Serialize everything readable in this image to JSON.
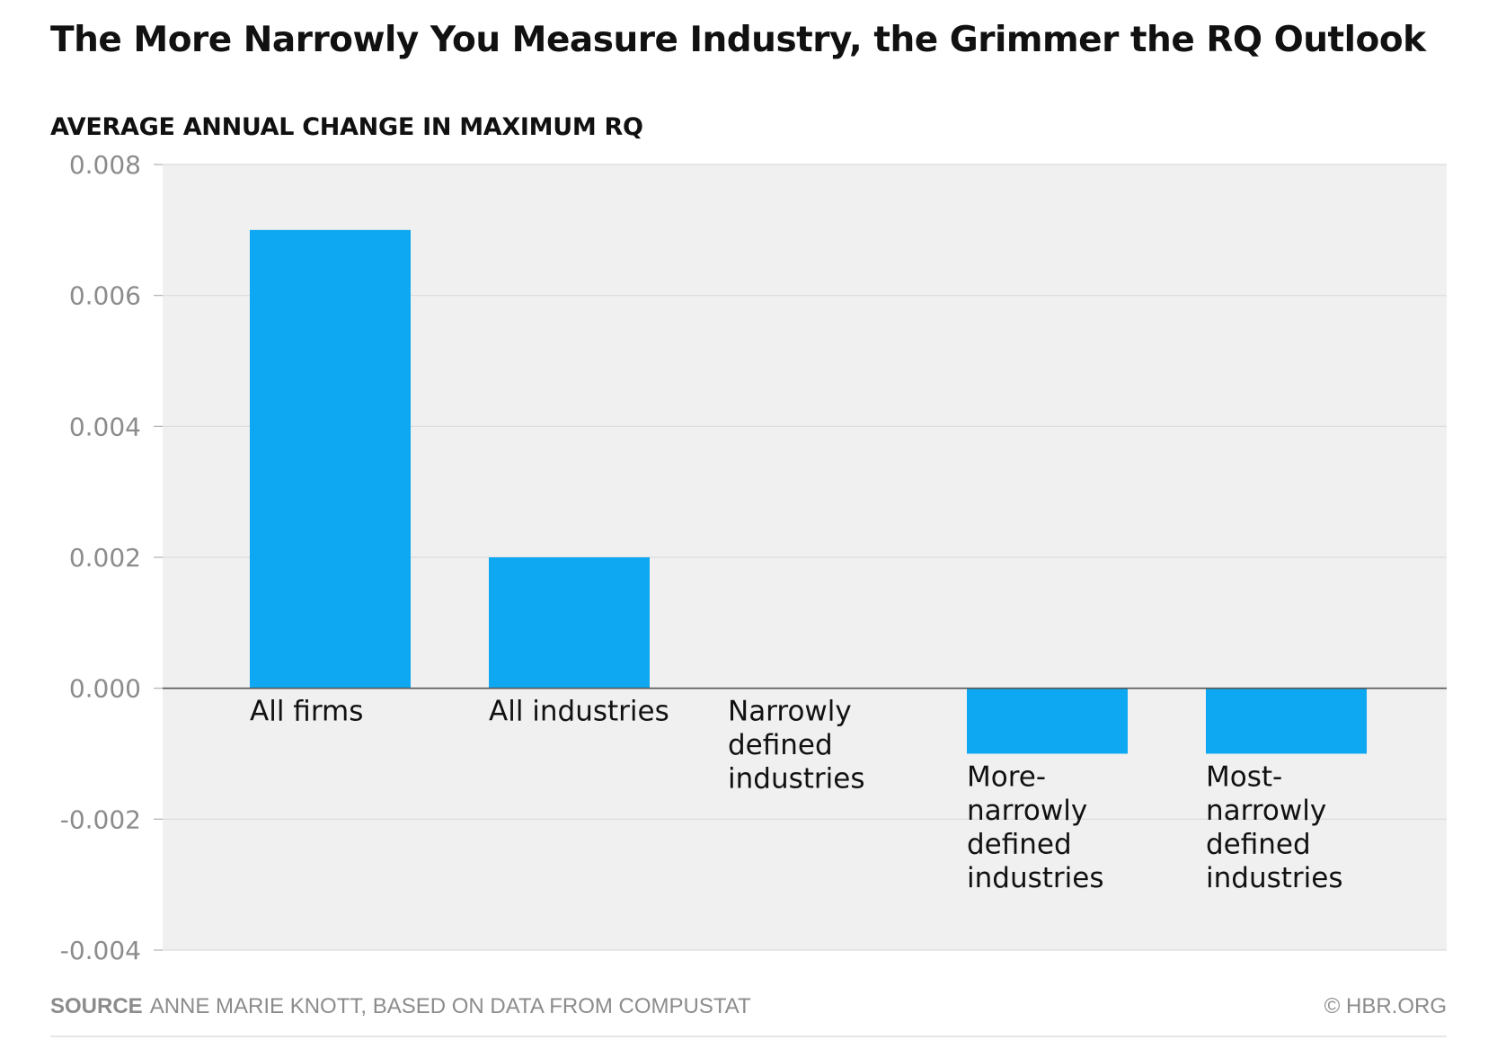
{
  "header": {
    "title": "The More Narrowly You Measure Industry, the Grimmer the RQ Outlook",
    "subtitle": "AVERAGE ANNUAL CHANGE IN MAXIMUM RQ"
  },
  "footer": {
    "source_label": "SOURCE",
    "source_text": "ANNE MARIE KNOTT, BASED ON DATA FROM COMPUSTAT",
    "copyright": "© HBR.ORG"
  },
  "colors": {
    "bar": "#0ea8f2",
    "plot_background": "#f0f0f0",
    "gridline": "#dcdcdc",
    "zero_line": "#555555",
    "tick_label": "#8c8c8c",
    "category_label": "#111111"
  },
  "chart_data": {
    "type": "bar",
    "title": "The More Narrowly You Measure Industry, the Grimmer the RQ Outlook",
    "ylabel": "AVERAGE ANNUAL CHANGE IN MAXIMUM RQ",
    "categories": [
      [
        "All firms"
      ],
      [
        "All industries"
      ],
      [
        "Narrowly",
        "defined",
        "industries"
      ],
      [
        "More-",
        "narrowly",
        "defined",
        "industries"
      ],
      [
        "Most-",
        "narrowly",
        "defined",
        "industries"
      ]
    ],
    "values": [
      0.007,
      0.002,
      0.0,
      -0.001,
      -0.001
    ],
    "ylim": [
      -0.004,
      0.008
    ],
    "yticks": [
      "0.008",
      "0.006",
      "0.004",
      "0.002",
      "0.000",
      "-0.002",
      "-0.004"
    ],
    "ytick_values": [
      0.008,
      0.006,
      0.004,
      0.002,
      0.0,
      -0.002,
      -0.004
    ],
    "grid": true,
    "legend": "none"
  }
}
